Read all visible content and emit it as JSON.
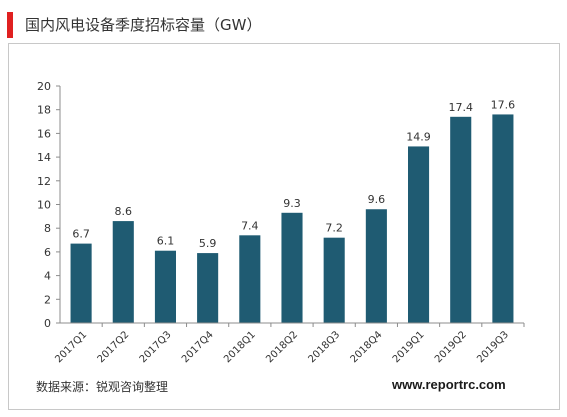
{
  "header": {
    "title": "国内风电设备季度招标容量（GW）",
    "accent_color": "#e02020"
  },
  "footer": {
    "source": "数据来源：锐观咨询整理",
    "url": "www.reportrc.com"
  },
  "chart_data": {
    "type": "bar",
    "categories": [
      "2017Q1",
      "2017Q2",
      "2017Q3",
      "2017Q4",
      "2018Q1",
      "2018Q2",
      "2018Q3",
      "2018Q4",
      "2019Q1",
      "2019Q2",
      "2019Q3"
    ],
    "values": [
      6.7,
      8.6,
      6.1,
      5.9,
      7.4,
      9.3,
      7.2,
      9.6,
      14.9,
      17.4,
      17.6
    ],
    "value_labels": [
      "6.7",
      "8.6",
      "6.1",
      "5.9",
      "7.4",
      "9.3",
      "7.2",
      "9.6",
      "14.9",
      "17.4",
      "17.6"
    ],
    "ylim": [
      0,
      20
    ],
    "yticks": [
      0,
      2,
      4,
      6,
      8,
      10,
      12,
      14,
      16,
      18,
      20
    ],
    "bar_color": "#1f5b72",
    "grid": false,
    "legend": "none"
  }
}
